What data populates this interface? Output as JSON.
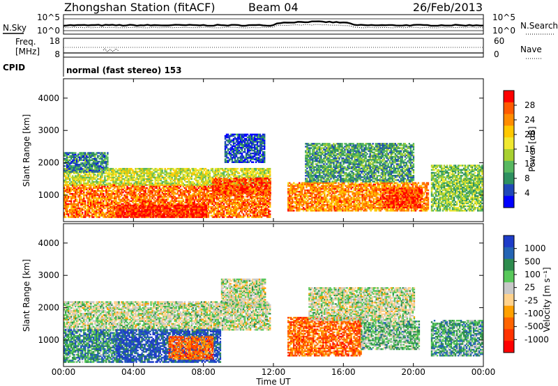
{
  "header": {
    "station": "Zhongshan Station (fitACF)",
    "beam": "Beam 04",
    "date": "26/Feb/2013"
  },
  "noise_panel": {
    "left_label": "N.Sky",
    "right_label": "N.Search",
    "ticks": [
      "10^5",
      "10^0"
    ]
  },
  "freq_panel": {
    "left_label_1": "Freq.",
    "left_label_2": "[MHz]",
    "left_ticks": [
      "18",
      "8"
    ],
    "right_label": "Nave",
    "right_ticks": [
      "60",
      "0"
    ]
  },
  "cpid_panel": {
    "label": "CPID",
    "text": "normal (fast stereo) 153"
  },
  "x_axis": {
    "label": "Time UT",
    "ticks": [
      "00:00",
      "04:00",
      "08:00",
      "12:00",
      "16:00",
      "20:00",
      "00:00"
    ]
  },
  "chart_data": [
    {
      "type": "heatmap",
      "title": "",
      "ylabel": "Slant Range [km]",
      "xlabel": "Time UT",
      "yticks": [
        1000,
        2000,
        3000,
        4000
      ],
      "ylim": [
        180,
        4600
      ],
      "xlim_hours": [
        0,
        24
      ],
      "colorbar_label": "Power [dB]",
      "colorbar_ticks": [
        "28",
        "24",
        "20",
        "16",
        "12",
        "8",
        "4"
      ],
      "colorbar_colors": [
        "#ff0000",
        "#ff5a00",
        "#ff8c00",
        "#ffc800",
        "#f0e830",
        "#a8d030",
        "#58b860",
        "#2e9060",
        "#2048b8",
        "#0000ff"
      ],
      "regions": [
        {
          "t0": 0.0,
          "t1": 11.8,
          "r0": 300,
          "r1": 1300,
          "level": 0.2
        },
        {
          "t0": 0.0,
          "t1": 11.8,
          "r0": 1300,
          "r1": 1800,
          "level": 0.5
        },
        {
          "t0": 3.0,
          "t1": 8.2,
          "r0": 300,
          "r1": 700,
          "level": 0.05
        },
        {
          "t0": 8.5,
          "t1": 11.8,
          "r0": 1000,
          "r1": 1500,
          "level": 0.15
        },
        {
          "t0": 0.0,
          "t1": 2.5,
          "r0": 1700,
          "r1": 2300,
          "level": 0.75
        },
        {
          "t0": 9.2,
          "t1": 11.5,
          "r0": 2000,
          "r1": 2900,
          "level": 0.85
        },
        {
          "t0": 12.8,
          "t1": 20.8,
          "r0": 500,
          "r1": 1400,
          "level": 0.25
        },
        {
          "t0": 13.8,
          "t1": 20.0,
          "r0": 1400,
          "r1": 2600,
          "level": 0.7
        },
        {
          "t0": 18.2,
          "t1": 20.5,
          "r0": 600,
          "r1": 1200,
          "level": 0.1
        },
        {
          "t0": 21.0,
          "t1": 23.9,
          "r0": 500,
          "r1": 1900,
          "level": 0.6
        }
      ]
    },
    {
      "type": "heatmap",
      "title": "",
      "ylabel": "Slant Range [km]",
      "xlabel": "Time UT",
      "yticks": [
        1000,
        2000,
        3000,
        4000
      ],
      "ylim": [
        180,
        4600
      ],
      "xlim_hours": [
        0,
        24
      ],
      "colorbar_label": "Velocity [m s⁻¹]",
      "colorbar_ticks": [
        "1000",
        "500",
        "100",
        "25",
        "-25",
        "-100",
        "-500",
        "-1000"
      ],
      "colorbar_colors": [
        "#1e3cc8",
        "#2464b4",
        "#2e8c4e",
        "#58c85a",
        "#c8c8c8",
        "#ffd28c",
        "#ffa000",
        "#ff6400",
        "#ff3200",
        "#ff0000"
      ],
      "regions": [
        {
          "t0": 0.0,
          "t1": 11.8,
          "r0": 1300,
          "r1": 2200,
          "level": 0.45
        },
        {
          "t0": 0.0,
          "t1": 3.0,
          "r0": 300,
          "r1": 1300,
          "level": 0.25
        },
        {
          "t0": 3.0,
          "t1": 9.0,
          "r0": 300,
          "r1": 1300,
          "level": 0.1
        },
        {
          "t0": 6.0,
          "t1": 8.5,
          "r0": 400,
          "r1": 1100,
          "level": 0.75
        },
        {
          "t0": 9.0,
          "t1": 11.5,
          "r0": 2000,
          "r1": 2900,
          "level": 0.45
        },
        {
          "t0": 12.8,
          "t1": 17.0,
          "r0": 500,
          "r1": 1700,
          "level": 0.75
        },
        {
          "t0": 14.0,
          "t1": 20.0,
          "r0": 1600,
          "r1": 2600,
          "level": 0.45
        },
        {
          "t0": 17.0,
          "t1": 20.3,
          "r0": 700,
          "r1": 1600,
          "level": 0.35
        },
        {
          "t0": 21.0,
          "t1": 23.9,
          "r0": 500,
          "r1": 1600,
          "level": 0.3
        }
      ]
    }
  ]
}
